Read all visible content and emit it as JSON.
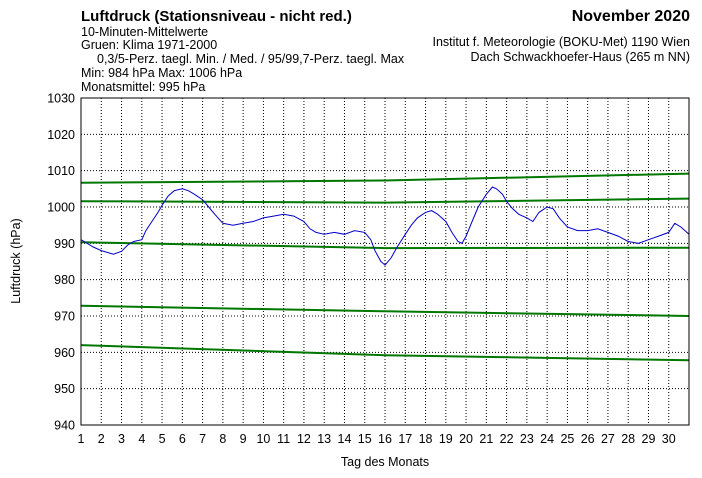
{
  "header": {
    "title": "Luftdruck (Stationsniveau - nicht red.)",
    "subtitle": "10-Minuten-Mittelwerte",
    "green_note": "Gruen: Klima 1971-2000",
    "percentile_note": "0,3/5-Perz. taegl. Min. / Med. / 95/99,7-Perz. taegl. Max",
    "minmax": "Min:  984 hPa   Max: 1006 hPa",
    "monthly_mean": "Monatsmittel:  995 hPa",
    "month": "November 2020",
    "institute": "Institut f. Meteorologie (BOKU-Met) 1190 Wien",
    "station": "Dach Schwackhoefer-Haus (265 m NN)"
  },
  "colors": {
    "observed": "#0000c8",
    "climate": "#007800",
    "grid": "#000000"
  },
  "chart_data": {
    "type": "line",
    "xlabel": "Tag des Monats",
    "ylabel": "Luftdruck (hPa)",
    "xlim": [
      1,
      31
    ],
    "ylim": [
      940,
      1030
    ],
    "x_ticks": [
      1,
      2,
      3,
      4,
      5,
      6,
      7,
      8,
      9,
      10,
      11,
      12,
      13,
      14,
      15,
      16,
      17,
      18,
      19,
      20,
      21,
      22,
      23,
      24,
      25,
      26,
      27,
      28,
      29,
      30
    ],
    "y_ticks": [
      940,
      950,
      960,
      970,
      980,
      990,
      1000,
      1010,
      1020,
      1030
    ],
    "grid": true,
    "series": [
      {
        "role": "observed",
        "points": [
          [
            1.0,
            991.0
          ],
          [
            1.3,
            990.0
          ],
          [
            1.6,
            989.0
          ],
          [
            2.0,
            988.0
          ],
          [
            2.3,
            987.5
          ],
          [
            2.6,
            987.0
          ],
          [
            3.0,
            987.8
          ],
          [
            3.3,
            989.5
          ],
          [
            3.6,
            990.5
          ],
          [
            4.0,
            991.0
          ],
          [
            4.2,
            993.5
          ],
          [
            4.5,
            996.0
          ],
          [
            4.8,
            998.5
          ],
          [
            5.0,
            1000.5
          ],
          [
            5.3,
            1003.0
          ],
          [
            5.6,
            1004.5
          ],
          [
            6.0,
            1005.0
          ],
          [
            6.3,
            1004.5
          ],
          [
            6.6,
            1003.5
          ],
          [
            7.0,
            1002.0
          ],
          [
            7.3,
            1000.0
          ],
          [
            7.6,
            998.0
          ],
          [
            8.0,
            995.5
          ],
          [
            8.5,
            995.0
          ],
          [
            9.0,
            995.5
          ],
          [
            9.5,
            996.0
          ],
          [
            10.0,
            997.0
          ],
          [
            10.5,
            997.5
          ],
          [
            11.0,
            998.0
          ],
          [
            11.5,
            997.5
          ],
          [
            12.0,
            996.0
          ],
          [
            12.3,
            994.0
          ],
          [
            12.6,
            993.0
          ],
          [
            13.0,
            992.5
          ],
          [
            13.5,
            993.0
          ],
          [
            14.0,
            992.5
          ],
          [
            14.5,
            993.5
          ],
          [
            15.0,
            993.0
          ],
          [
            15.3,
            991.0
          ],
          [
            15.5,
            988.0
          ],
          [
            15.8,
            985.0
          ],
          [
            16.0,
            984.0
          ],
          [
            16.3,
            986.0
          ],
          [
            16.6,
            989.0
          ],
          [
            17.0,
            992.5
          ],
          [
            17.3,
            995.0
          ],
          [
            17.6,
            997.0
          ],
          [
            18.0,
            998.5
          ],
          [
            18.3,
            999.0
          ],
          [
            18.6,
            998.0
          ],
          [
            19.0,
            996.0
          ],
          [
            19.3,
            993.0
          ],
          [
            19.6,
            990.5
          ],
          [
            19.8,
            990.0
          ],
          [
            20.0,
            992.0
          ],
          [
            20.3,
            996.0
          ],
          [
            20.6,
            1000.0
          ],
          [
            21.0,
            1003.5
          ],
          [
            21.3,
            1005.5
          ],
          [
            21.5,
            1005.0
          ],
          [
            21.8,
            1003.5
          ],
          [
            22.0,
            1001.5
          ],
          [
            22.3,
            999.5
          ],
          [
            22.6,
            998.0
          ],
          [
            23.0,
            997.0
          ],
          [
            23.3,
            996.0
          ],
          [
            23.6,
            998.5
          ],
          [
            24.0,
            1000.0
          ],
          [
            24.3,
            999.5
          ],
          [
            24.6,
            997.0
          ],
          [
            25.0,
            994.5
          ],
          [
            25.5,
            993.5
          ],
          [
            26.0,
            993.5
          ],
          [
            26.5,
            994.0
          ],
          [
            27.0,
            993.0
          ],
          [
            27.5,
            992.0
          ],
          [
            28.0,
            990.5
          ],
          [
            28.5,
            990.0
          ],
          [
            29.0,
            991.0
          ],
          [
            29.5,
            992.0
          ],
          [
            30.0,
            993.0
          ],
          [
            30.3,
            995.5
          ],
          [
            30.6,
            994.5
          ],
          [
            31.0,
            992.5
          ]
        ]
      },
      {
        "role": "climate",
        "points": [
          [
            1,
            1006.7
          ],
          [
            16,
            1007.3
          ],
          [
            31,
            1009.2
          ]
        ]
      },
      {
        "role": "climate",
        "points": [
          [
            1,
            1001.6
          ],
          [
            16,
            1001.2
          ],
          [
            31,
            1002.3
          ]
        ]
      },
      {
        "role": "climate",
        "points": [
          [
            1,
            990.3
          ],
          [
            16,
            988.7
          ],
          [
            31,
            988.8
          ]
        ]
      },
      {
        "role": "climate",
        "points": [
          [
            1,
            972.8
          ],
          [
            16,
            971.3
          ],
          [
            31,
            970.0
          ]
        ]
      },
      {
        "role": "climate",
        "points": [
          [
            1,
            962.0
          ],
          [
            16,
            959.2
          ],
          [
            31,
            957.8
          ]
        ]
      }
    ]
  }
}
